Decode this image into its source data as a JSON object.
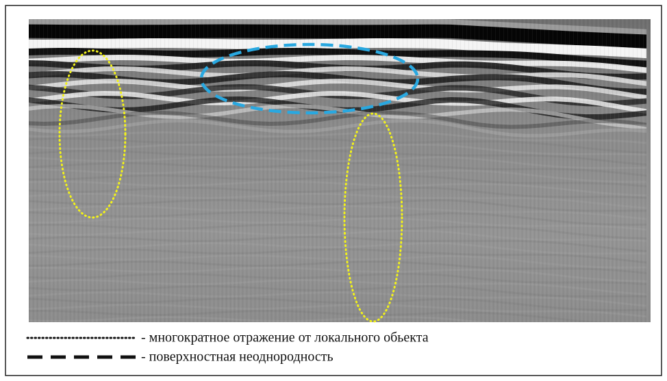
{
  "legend": [
    {
      "label": "- многократное отражение от локального обьекта"
    },
    {
      "label": "- поверхностная неоднородность"
    }
  ]
}
